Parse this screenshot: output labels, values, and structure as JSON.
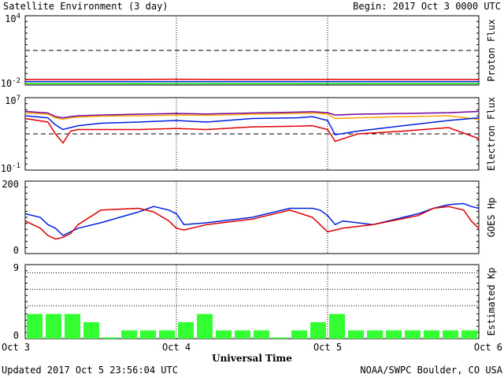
{
  "header": {
    "title": "Satellite Environment (3 day)",
    "begin": "Begin:  2017 Oct 3 0000 UTC"
  },
  "footer": {
    "updated": "Updated 2017 Oct  5 23:56:04 UTC",
    "credit": "NOAA/SWPC Boulder, CO USA"
  },
  "colors": {
    "red": "#e00000",
    "blue": "#0020e0",
    "green": "#00e000",
    "orange": "#ffa500",
    "purple": "#7000a0",
    "kp_bar": "#33ff33"
  },
  "chart_data": [
    {
      "type": "line",
      "ylabel": "Proton Flux",
      "yscale": "log",
      "ylim": [
        0.01,
        10000
      ],
      "yticks": [
        {
          "base": "10",
          "exp": "4"
        },
        {
          "base": "10",
          "exp": "-2"
        }
      ],
      "dashed_threshold": 10,
      "x": [
        0,
        0.5,
        1,
        1.5,
        2,
        2.5,
        3
      ],
      "series": [
        {
          "color": "red",
          "values": [
            0.03,
            0.03,
            0.032,
            0.03,
            0.031,
            0.03,
            0.03
          ]
        },
        {
          "color": "blue",
          "values": [
            0.02,
            0.02,
            0.02,
            0.02,
            0.02,
            0.02,
            0.02
          ]
        },
        {
          "color": "green",
          "values": [
            0.013,
            0.013,
            0.013,
            0.013,
            0.013,
            0.013,
            0.013
          ]
        }
      ]
    },
    {
      "type": "line",
      "ylabel": "Electron Flux",
      "yscale": "log",
      "ylim": [
        0.1,
        10000000
      ],
      "yticks": [
        {
          "base": "10",
          "exp": "7"
        },
        {
          "base": "10",
          "exp": "-1"
        }
      ],
      "dashed_threshold": 1000,
      "x": [
        0,
        0.15,
        0.2,
        0.25,
        0.3,
        0.35,
        0.5,
        0.75,
        1.0,
        1.2,
        1.5,
        1.8,
        1.9,
        2.0,
        2.05,
        2.2,
        2.5,
        2.8,
        3.0
      ],
      "series": [
        {
          "color": "purple",
          "values": [
            300000,
            200000,
            80000,
            60000,
            80000,
            100000,
            120000,
            150000,
            180000,
            160000,
            200000,
            250000,
            280000,
            220000,
            120000,
            150000,
            180000,
            220000,
            300000
          ]
        },
        {
          "color": "orange",
          "values": [
            200000,
            150000,
            60000,
            40000,
            60000,
            70000,
            90000,
            100000,
            120000,
            110000,
            150000,
            180000,
            200000,
            150000,
            50000,
            60000,
            80000,
            100000,
            40000
          ]
        },
        {
          "color": "blue",
          "values": [
            100000,
            60000,
            10000,
            3000,
            5000,
            8000,
            15000,
            20000,
            30000,
            20000,
            50000,
            60000,
            80000,
            30000,
            800,
            2000,
            8000,
            30000,
            60000
          ]
        },
        {
          "color": "red",
          "values": [
            50000,
            20000,
            1000,
            100,
            2000,
            3000,
            3000,
            3000,
            4000,
            3000,
            6000,
            7000,
            8000,
            3000,
            150,
            1000,
            2000,
            5000,
            300
          ]
        }
      ]
    },
    {
      "type": "line",
      "ylabel": "GOES Hp",
      "ylim": [
        0,
        200
      ],
      "yticks": [
        "200",
        "0"
      ],
      "x": [
        0,
        0.1,
        0.15,
        0.2,
        0.25,
        0.3,
        0.35,
        0.5,
        0.75,
        0.85,
        0.95,
        1.0,
        1.05,
        1.2,
        1.5,
        1.75,
        1.9,
        1.95,
        2.0,
        2.05,
        2.1,
        2.3,
        2.6,
        2.7,
        2.8,
        2.9,
        2.95,
        3.0
      ],
      "series": [
        {
          "color": "blue",
          "values": [
            110,
            100,
            80,
            70,
            50,
            60,
            70,
            85,
            115,
            130,
            120,
            110,
            80,
            85,
            100,
            125,
            125,
            120,
            105,
            80,
            90,
            80,
            110,
            125,
            135,
            138,
            130,
            125
          ]
        },
        {
          "color": "red",
          "values": [
            90,
            70,
            50,
            40,
            45,
            55,
            80,
            120,
            125,
            115,
            90,
            70,
            65,
            80,
            95,
            120,
            100,
            80,
            60,
            65,
            70,
            80,
            105,
            125,
            130,
            120,
            90,
            70
          ]
        }
      ]
    },
    {
      "type": "bar",
      "ylabel": "Estimated Kp",
      "ylim": [
        0,
        9
      ],
      "yticks": [
        "9",
        "0"
      ],
      "dotted_levels": [
        4,
        6,
        8
      ],
      "values": [
        3,
        3,
        3,
        2,
        0,
        1,
        1,
        1,
        2,
        3,
        1,
        1,
        1,
        0,
        1,
        2,
        3,
        1,
        1,
        1,
        1,
        1,
        1,
        1
      ],
      "xticks": [
        "Oct 3",
        "Oct 4",
        "Oct 5",
        "Oct 6"
      ],
      "xlabel": "Universal Time"
    }
  ]
}
